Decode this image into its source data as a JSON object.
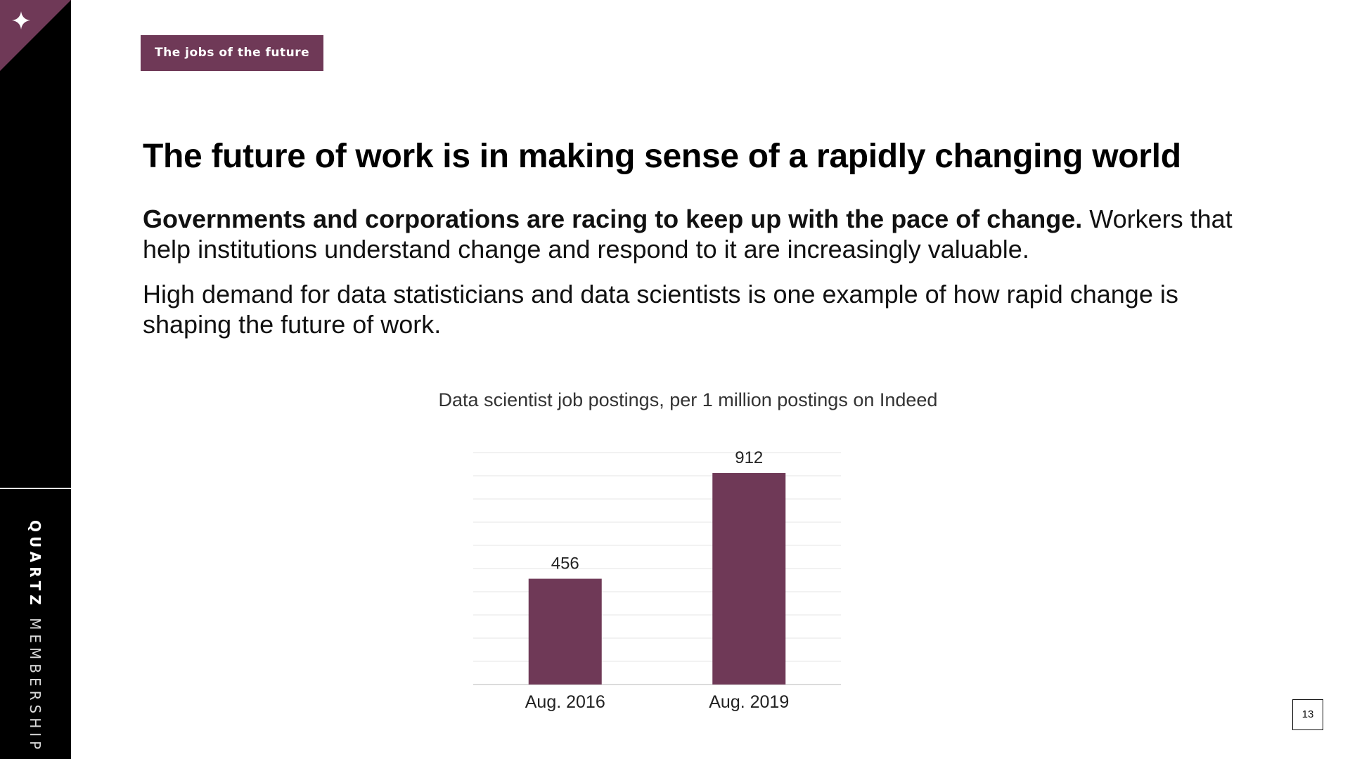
{
  "slide": {
    "tag": "The jobs of the future",
    "headline": "The future of work is in making sense of a rapidly changing world",
    "para1_bold": "Governments and corporations are racing to keep up with the pace of change.",
    "para1_rest": " Workers that help institutions understand change and respond to it are increasingly valuable.",
    "para2": "High demand for data statisticians and data scientists is one example of how rapid change is shaping the future of work.",
    "page_number": "13"
  },
  "sidebar": {
    "brand_bold": "QUARTZ",
    "brand_light": "MEMBERSHIP",
    "logo_icon": "sparkle-icon"
  },
  "colors": {
    "accent": "#6f3957",
    "sidebar": "#000000",
    "grid": "#e4e4e4"
  },
  "chart_data": {
    "type": "bar",
    "title": "Data scientist job postings, per 1 million postings on Indeed",
    "categories": [
      "Aug. 2016",
      "Aug. 2019"
    ],
    "values": [
      456,
      912
    ],
    "xlabel": "",
    "ylabel": "",
    "ylim": [
      0,
      1000
    ],
    "grid": true,
    "data_labels": true,
    "bar_color": "#6f3957"
  }
}
